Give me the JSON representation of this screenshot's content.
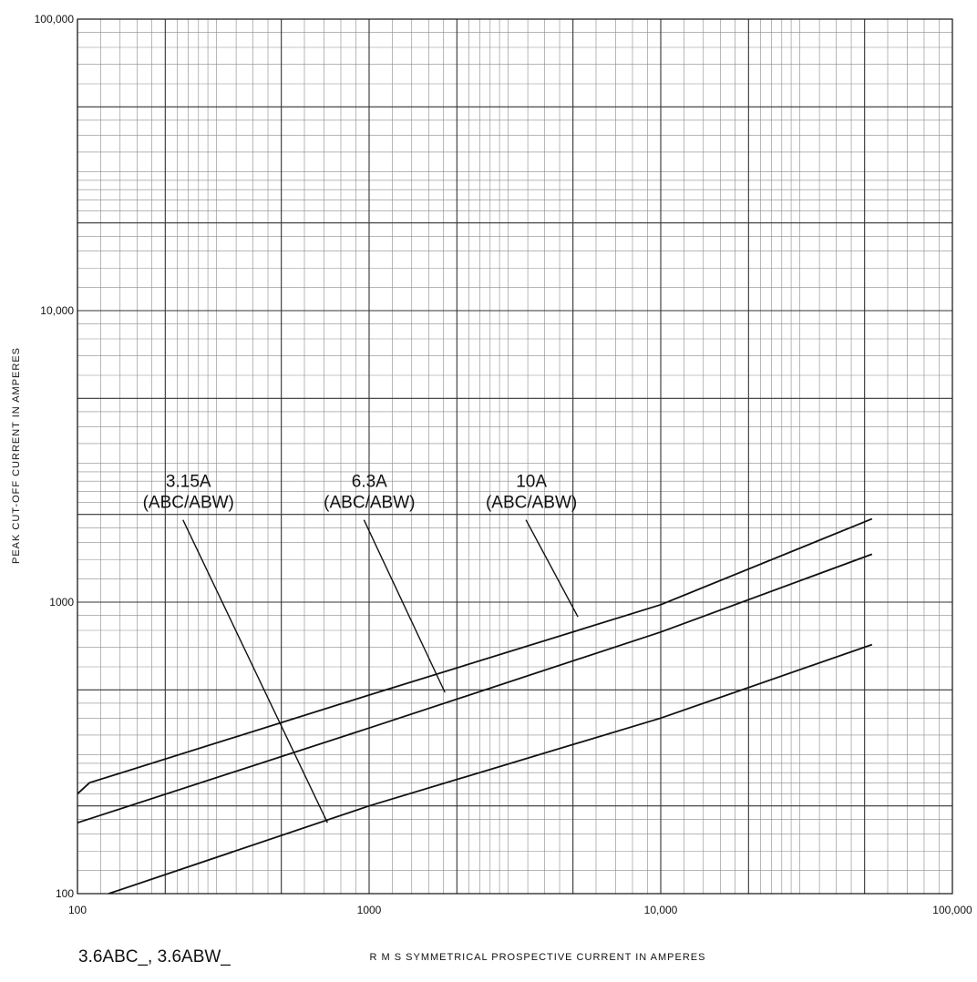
{
  "chart_data": {
    "type": "line",
    "x_scale": "log",
    "y_scale": "log",
    "xlim": [
      100,
      100000
    ],
    "ylim": [
      100,
      100000
    ],
    "grid": true,
    "xlabel": "R M S  SYMMETRICAL  PROSPECTIVE  CURRENT  IN  AMPERES",
    "ylabel": "PEAK  CUT-OFF  CURRENT  IN  AMPERES",
    "x_tick_labels": [
      {
        "value": 100,
        "label": "100"
      },
      {
        "value": 1000,
        "label": "1000"
      },
      {
        "value": 10000,
        "label": "10,000"
      },
      {
        "value": 100000,
        "label": "100,000"
      }
    ],
    "y_tick_labels": [
      {
        "value": 100,
        "label": "100"
      },
      {
        "value": 1000,
        "label": "1000"
      },
      {
        "value": 10000,
        "label": "10,000"
      },
      {
        "value": 100000,
        "label": "100,000"
      }
    ],
    "series": [
      {
        "name": "10A (ABC/ABW)",
        "label_lines": [
          "10A",
          "(ABC/ABW)"
        ],
        "points": [
          [
            100,
            220
          ],
          [
            110,
            240
          ],
          [
            1000,
            480
          ],
          [
            10000,
            980
          ],
          [
            53000,
            1930
          ]
        ],
        "callout_label_at": [
          3450,
          2000
        ],
        "callout_point": [
          5200,
          890
        ]
      },
      {
        "name": "6.3A (ABC/ABW)",
        "label_lines": [
          "6.3A",
          "(ABC/ABW)"
        ],
        "points": [
          [
            100,
            175
          ],
          [
            1000,
            370
          ],
          [
            10000,
            790
          ],
          [
            53000,
            1460
          ]
        ],
        "callout_label_at": [
          960,
          2000
        ],
        "callout_point": [
          1820,
          490
        ]
      },
      {
        "name": "3.15A (ABC/ABW)",
        "label_lines": [
          "3.15A",
          "(ABC/ABW)"
        ],
        "points": [
          [
            128,
            100
          ],
          [
            1000,
            200
          ],
          [
            10000,
            400
          ],
          [
            53000,
            715
          ]
        ],
        "callout_label_at": [
          230,
          2000
        ],
        "callout_point": [
          720,
          175
        ]
      }
    ]
  },
  "footer": {
    "product_label": "3.6ABC_, 3.6ABW_"
  }
}
